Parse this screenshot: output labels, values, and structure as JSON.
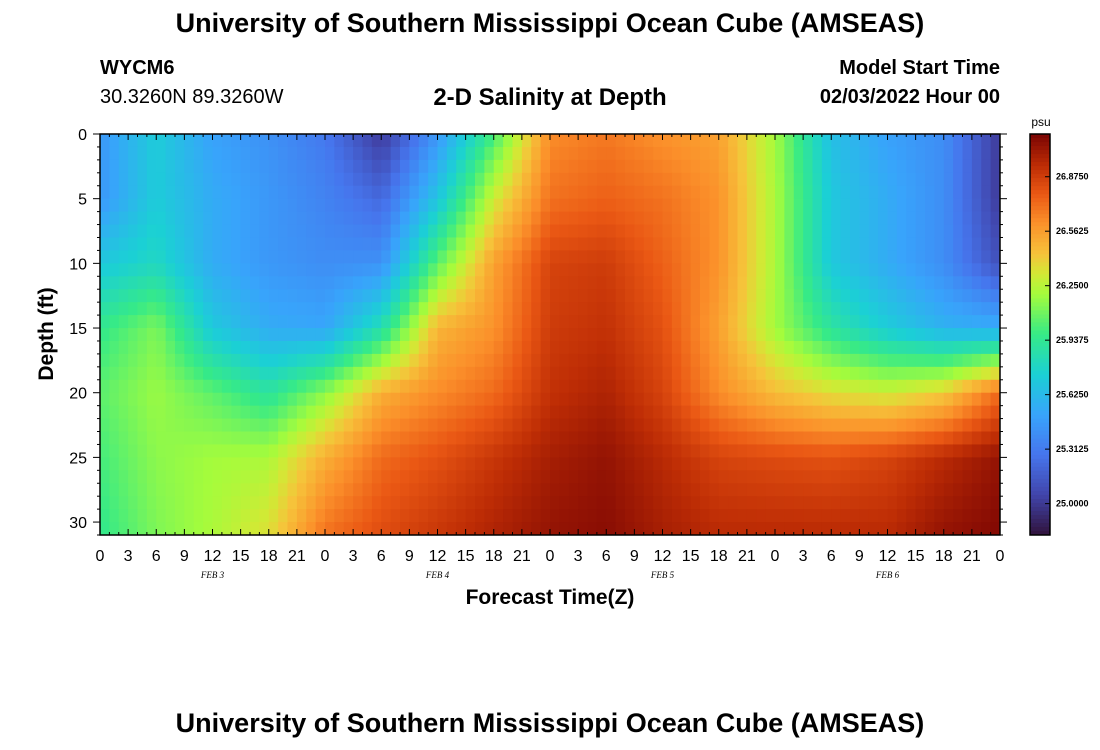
{
  "header": {
    "title": "University of Southern Mississippi Ocean Cube (AMSEAS)",
    "station_id": "WYCM6",
    "station_coords": "30.3260N  89.3260W",
    "plot_title": "2-D Salinity at Depth",
    "model_start_label": "Model Start Time",
    "model_start_value": "02/03/2022 Hour 00"
  },
  "footer": {
    "title_repeat": "University of Southern Mississippi Ocean Cube (AMSEAS)"
  },
  "chart_data": {
    "type": "heatmap",
    "title": "2-D Salinity at Depth",
    "xlabel": "Forecast Time(Z)",
    "ylabel": "Depth (ft)",
    "x_hours_range": [
      0,
      96
    ],
    "x_tick_step_hours": 3,
    "x_tick_labels": [
      "0",
      "3",
      "6",
      "9",
      "12",
      "15",
      "18",
      "21",
      "0",
      "3",
      "6",
      "9",
      "12",
      "15",
      "18",
      "21",
      "0",
      "3",
      "6",
      "9",
      "12",
      "15",
      "18",
      "21",
      "0",
      "3",
      "6",
      "9",
      "12",
      "15",
      "18",
      "21",
      "0"
    ],
    "date_labels": [
      {
        "label": "FEB 3",
        "hour": 12
      },
      {
        "label": "FEB 4",
        "hour": 36
      },
      {
        "label": "FEB 5",
        "hour": 60
      },
      {
        "label": "FEB 6",
        "hour": 84
      }
    ],
    "ylim": [
      0,
      31
    ],
    "y_ticks": [
      0,
      5,
      10,
      15,
      20,
      25,
      30
    ],
    "colorbar": {
      "unit": "psu",
      "range": [
        24.82,
        27.12
      ],
      "tick_values": [
        25.0,
        25.3125,
        25.625,
        25.9375,
        26.25,
        26.5625,
        26.875
      ],
      "tick_labels": [
        "25.0000",
        "25.3125",
        "25.6250",
        "25.9375",
        "26.2500",
        "26.5625",
        "26.8750"
      ]
    },
    "depth_levels_ft": [
      0,
      5,
      10,
      15,
      20,
      25,
      31
    ],
    "time_samples_hours": [
      0,
      6,
      12,
      18,
      24,
      30,
      36,
      42,
      48,
      54,
      60,
      66,
      72,
      78,
      84,
      90,
      96
    ],
    "salinity_psu": [
      [
        25.45,
        25.72,
        25.5,
        25.42,
        25.3,
        25.0,
        25.45,
        26.0,
        26.62,
        26.68,
        26.6,
        26.55,
        26.2,
        25.65,
        25.5,
        25.4,
        25.0
      ],
      [
        25.45,
        25.72,
        25.55,
        25.45,
        25.35,
        25.22,
        25.68,
        26.3,
        26.7,
        26.75,
        26.7,
        26.6,
        26.22,
        25.7,
        25.55,
        25.4,
        25.0
      ],
      [
        25.7,
        25.8,
        25.55,
        25.45,
        25.4,
        25.42,
        26.05,
        26.55,
        26.85,
        26.88,
        26.75,
        26.6,
        26.22,
        25.7,
        25.55,
        25.4,
        25.1
      ],
      [
        25.95,
        26.12,
        25.7,
        25.55,
        25.52,
        25.85,
        26.48,
        26.6,
        26.88,
        26.92,
        26.8,
        26.55,
        26.2,
        25.9,
        25.72,
        25.58,
        25.55
      ],
      [
        26.05,
        26.18,
        26.05,
        25.9,
        26.15,
        26.5,
        26.62,
        26.72,
        26.92,
        26.98,
        26.85,
        26.62,
        26.45,
        26.35,
        26.3,
        26.4,
        26.72
      ],
      [
        26.0,
        26.15,
        26.2,
        26.22,
        26.5,
        26.72,
        26.8,
        26.9,
        27.0,
        27.05,
        26.95,
        26.85,
        26.82,
        26.8,
        26.85,
        26.95,
        27.05
      ],
      [
        25.95,
        26.12,
        26.22,
        26.35,
        26.7,
        26.82,
        26.9,
        26.98,
        27.05,
        27.08,
        27.0,
        26.95,
        26.95,
        26.95,
        26.95,
        27.05,
        27.1
      ]
    ]
  }
}
